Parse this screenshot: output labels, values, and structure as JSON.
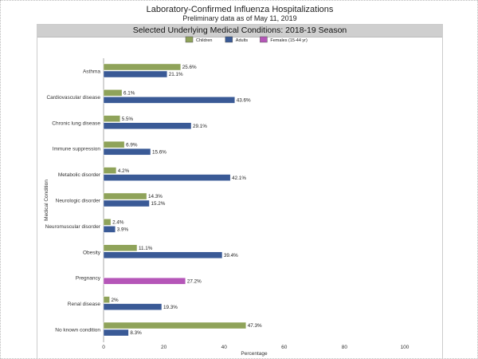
{
  "title": "Laboratory-Confirmed Influenza Hospitalizations",
  "subtitle": "Preliminary data as of May 11, 2019",
  "panel_title": "Selected Underlying Medical Conditions: 2018-19 Season",
  "chart_data": {
    "type": "bar",
    "orientation": "horizontal",
    "xlabel": "Percentage",
    "ylabel": "Medical Condition",
    "xlim": [
      0,
      100
    ],
    "xticks": [
      "0",
      "20",
      "40",
      "60",
      "80",
      "100"
    ],
    "legend_position": "top",
    "categories": [
      "Asthma",
      "Cardiovascular disease",
      "Chronic lung disease",
      "Immune suppression",
      "Metabolic disorder",
      "Neurologic disorder",
      "Neuromuscular disorder",
      "Obesity",
      "Pregnancy",
      "Renal disease",
      "No known condition"
    ],
    "series": [
      {
        "name": "Children",
        "color": "#8fa35a",
        "values": [
          25.6,
          6.1,
          5.5,
          6.9,
          4.2,
          14.3,
          2.4,
          11.1,
          null,
          2,
          47.3
        ],
        "labels": [
          "25.6%",
          "6.1%",
          "5.5%",
          "6.9%",
          "4.2%",
          "14.3%",
          "2.4%",
          "11.1%",
          null,
          "2%",
          "47.3%"
        ]
      },
      {
        "name": "Adults",
        "color": "#3a5a96",
        "values": [
          21.1,
          43.6,
          29.1,
          15.6,
          42.1,
          15.2,
          3.9,
          39.4,
          null,
          19.3,
          8.3
        ],
        "labels": [
          "21.1%",
          "43.6%",
          "29.1%",
          "15.6%",
          "42.1%",
          "15.2%",
          "3.9%",
          "39.4%",
          null,
          "19.3%",
          "8.3%"
        ]
      },
      {
        "name": "Females (15-44 yr)",
        "color": "#b556b8",
        "values": [
          null,
          null,
          null,
          null,
          null,
          null,
          null,
          null,
          27.2,
          null,
          null
        ],
        "labels": [
          null,
          null,
          null,
          null,
          null,
          null,
          null,
          null,
          "27.2%",
          null,
          null
        ]
      }
    ]
  }
}
